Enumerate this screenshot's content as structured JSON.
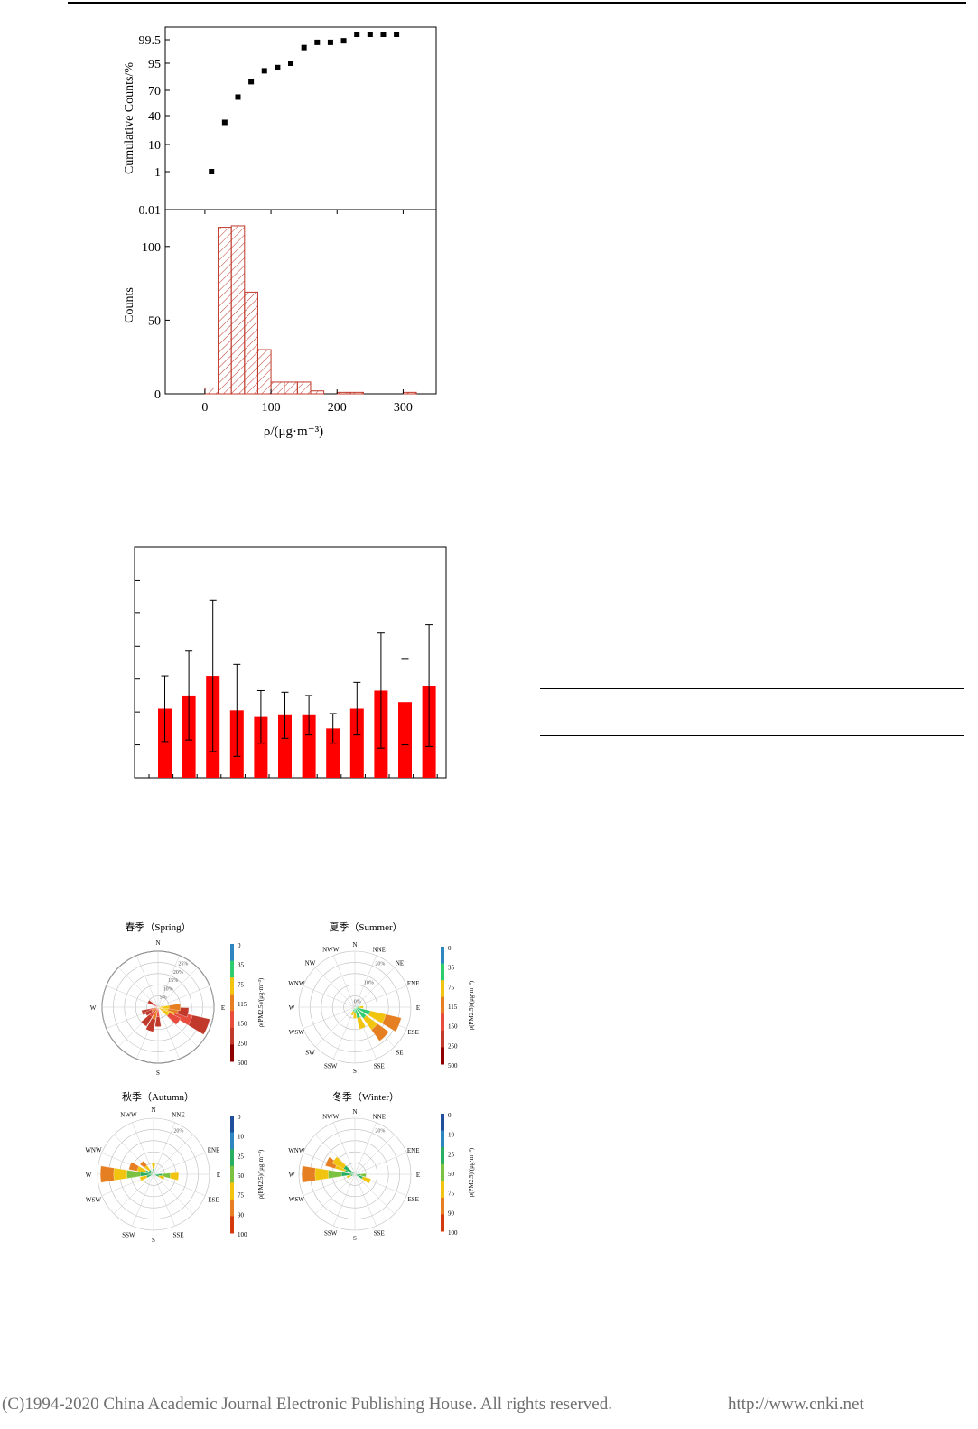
{
  "footer": {
    "copyright": "(C)1994-2020 China Academic Journal Electronic Publishing House. All rights reserved.",
    "url": "http://www.cnki.net"
  },
  "colors": {
    "histogram": "#c0392b",
    "bars": "#ff0000",
    "markers": "#000000"
  },
  "chart_data": [
    {
      "type": "scatter",
      "ylabel": "Cumulative Counts/%",
      "y_scale": "probability",
      "y_ticks": [
        "0.01",
        "1",
        "10",
        "40",
        "70",
        "95",
        "99.5"
      ],
      "xlim": [
        -60,
        350
      ],
      "points": [
        {
          "x": 10,
          "y": 1
        },
        {
          "x": 30,
          "y": 33
        },
        {
          "x": 50,
          "y": 62
        },
        {
          "x": 70,
          "y": 78
        },
        {
          "x": 90,
          "y": 88
        },
        {
          "x": 110,
          "y": 91
        },
        {
          "x": 130,
          "y": 95
        },
        {
          "x": 150,
          "y": 98
        },
        {
          "x": 170,
          "y": 99
        },
        {
          "x": 190,
          "y": 99
        },
        {
          "x": 210,
          "y": 99.3
        },
        {
          "x": 230,
          "y": 99.6
        },
        {
          "x": 250,
          "y": 99.6
        },
        {
          "x": 270,
          "y": 99.6
        },
        {
          "x": 290,
          "y": 99.6
        }
      ]
    },
    {
      "type": "bar",
      "style": "hatched-histogram",
      "ylabel": "Counts",
      "xlabel": "ρ/(μg·m⁻³)",
      "x_ticks": [
        "0",
        "100",
        "200",
        "300"
      ],
      "y_ticks": [
        "0",
        "50",
        "100"
      ],
      "xlim": [
        -60,
        350
      ],
      "ylim": [
        0,
        125
      ],
      "bin_width": 20,
      "bins": [
        {
          "start": 0,
          "count": 4
        },
        {
          "start": 20,
          "count": 113
        },
        {
          "start": 40,
          "count": 114
        },
        {
          "start": 60,
          "count": 69
        },
        {
          "start": 80,
          "count": 30
        },
        {
          "start": 100,
          "count": 8
        },
        {
          "start": 120,
          "count": 8
        },
        {
          "start": 140,
          "count": 8
        },
        {
          "start": 160,
          "count": 2
        },
        {
          "start": 200,
          "count": 1
        },
        {
          "start": 220,
          "count": 1
        },
        {
          "start": 300,
          "count": 1
        }
      ]
    },
    {
      "type": "bar",
      "style": "bars-with-error",
      "ylim": [
        0,
        7
      ],
      "values": [
        2.1,
        2.5,
        3.1,
        2.05,
        1.85,
        1.9,
        1.9,
        1.5,
        2.1,
        2.65,
        2.3,
        2.8
      ],
      "errors": [
        1.0,
        1.35,
        2.3,
        1.4,
        0.8,
        0.7,
        0.6,
        0.45,
        0.8,
        1.75,
        1.3,
        1.85
      ]
    },
    {
      "type": "windrose",
      "panels": [
        {
          "title": "春季（Spring）",
          "directions": [
            "N",
            "W",
            "E",
            "S"
          ],
          "ring_labels": [
            "25%",
            "20%",
            "15%",
            "10%",
            "5%"
          ],
          "colorbar_label": "ρ(PM2.5)/(μg·m⁻³)",
          "colorbar_ticks": [
            "0",
            "35",
            "75",
            "115",
            "150",
            "250",
            "500"
          ]
        },
        {
          "title": "夏季（Summer）",
          "directions": [
            "N",
            "NNE",
            "NE",
            "ENE",
            "E",
            "ESE",
            "SE",
            "SSE",
            "S",
            "SSW",
            "SW",
            "WSW",
            "W",
            "WNW",
            "NW",
            "NWW"
          ],
          "ring_labels": [
            "20%",
            "10%",
            "0%"
          ],
          "colorbar_label": "ρ(PM2.5)/(μg·m⁻³)",
          "colorbar_ticks": [
            "0",
            "35",
            "75",
            "115",
            "150",
            "250",
            "500"
          ]
        },
        {
          "title": "秋季（Autumn）",
          "directions": [
            "N",
            "NNE",
            "ENE",
            "E",
            "ESE",
            "SSE",
            "S",
            "SSW",
            "WSW",
            "W",
            "WNW",
            "NWW"
          ],
          "ring_labels": [
            "20%"
          ],
          "colorbar_label": "ρ(PM2.5)/(μg·m⁻³)",
          "colorbar_ticks": [
            "0",
            "10",
            "25",
            "50",
            "75",
            "90",
            "100"
          ]
        },
        {
          "title": "冬季（Winter）",
          "directions": [
            "N",
            "NNE",
            "ENE",
            "E",
            "ESE",
            "SSE",
            "S",
            "SSW",
            "WSW",
            "W",
            "WNW",
            "NWW"
          ],
          "ring_labels": [
            "20%"
          ],
          "colorbar_label": "ρ(PM2.5)/(μg·m⁻³)",
          "colorbar_ticks": [
            "0",
            "10",
            "25",
            "50",
            "75",
            "90",
            "100"
          ]
        }
      ]
    }
  ]
}
